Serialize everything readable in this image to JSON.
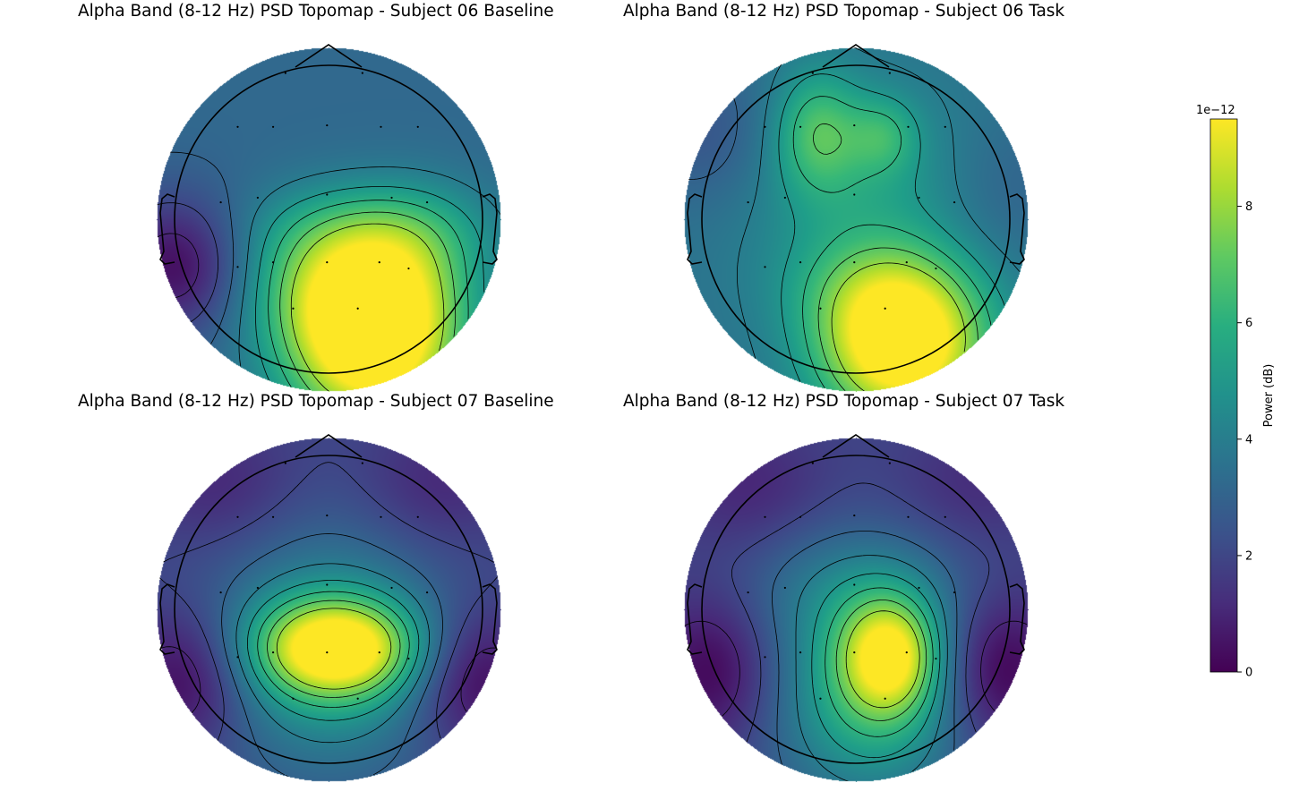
{
  "chart_data": [
    {
      "type": "heatmap",
      "title": "Alpha Band (8-12 Hz) PSD Topomap - Subject 06 Baseline",
      "sensors": [
        {
          "x": -0.28,
          "y": 0.95
        },
        {
          "x": 0.22,
          "y": 0.95
        },
        {
          "x": -0.59,
          "y": 0.6
        },
        {
          "x": -0.36,
          "y": 0.6
        },
        {
          "x": -0.01,
          "y": 0.61
        },
        {
          "x": 0.34,
          "y": 0.6
        },
        {
          "x": 0.58,
          "y": 0.6
        },
        {
          "x": -0.7,
          "y": 0.11
        },
        {
          "x": -0.46,
          "y": 0.14
        },
        {
          "x": -0.01,
          "y": 0.16
        },
        {
          "x": 0.41,
          "y": 0.14
        },
        {
          "x": 0.64,
          "y": 0.11
        },
        {
          "x": -0.59,
          "y": -0.31
        },
        {
          "x": -0.36,
          "y": -0.28
        },
        {
          "x": -0.01,
          "y": -0.28
        },
        {
          "x": 0.33,
          "y": -0.28
        },
        {
          "x": 0.52,
          "y": -0.32
        },
        {
          "x": -0.23,
          "y": -0.58
        },
        {
          "x": 0.19,
          "y": -0.58
        }
      ],
      "blobs": [
        {
          "x": 0.28,
          "y": -0.78,
          "sx": 0.4,
          "sy": 0.42,
          "a": 8.2
        },
        {
          "x": 0.05,
          "y": -0.4,
          "sx": 0.45,
          "sy": 0.3,
          "a": 2.6
        },
        {
          "x": 0.25,
          "y": -0.05,
          "sx": 0.55,
          "sy": 0.22,
          "a": 1.6
        },
        {
          "x": 0.6,
          "y": -0.2,
          "sx": 0.3,
          "sy": 0.3,
          "a": 1.0
        },
        {
          "x": -0.98,
          "y": -0.3,
          "sx": 0.32,
          "sy": 0.32,
          "a": -3.0
        }
      ],
      "base": 3.2
    },
    {
      "type": "heatmap",
      "title": "Alpha Band (8-12 Hz) PSD Topomap - Subject 06 Task",
      "sensors": [
        {
          "x": -0.28,
          "y": 0.95
        },
        {
          "x": 0.22,
          "y": 0.95
        },
        {
          "x": -0.59,
          "y": 0.6
        },
        {
          "x": -0.36,
          "y": 0.6
        },
        {
          "x": -0.01,
          "y": 0.61
        },
        {
          "x": 0.34,
          "y": 0.6
        },
        {
          "x": 0.58,
          "y": 0.6
        },
        {
          "x": -0.7,
          "y": 0.11
        },
        {
          "x": -0.46,
          "y": 0.14
        },
        {
          "x": -0.01,
          "y": 0.16
        },
        {
          "x": 0.41,
          "y": 0.14
        },
        {
          "x": 0.64,
          "y": 0.11
        },
        {
          "x": -0.59,
          "y": -0.31
        },
        {
          "x": -0.36,
          "y": -0.28
        },
        {
          "x": -0.01,
          "y": -0.28
        },
        {
          "x": 0.33,
          "y": -0.28
        },
        {
          "x": 0.52,
          "y": -0.32
        },
        {
          "x": -0.23,
          "y": -0.58
        },
        {
          "x": 0.19,
          "y": -0.58
        }
      ],
      "blobs": [
        {
          "x": 0.3,
          "y": -0.82,
          "sx": 0.38,
          "sy": 0.36,
          "a": 7.5
        },
        {
          "x": 0.1,
          "y": -0.45,
          "sx": 0.4,
          "sy": 0.25,
          "a": 1.5
        },
        {
          "x": -0.25,
          "y": 0.58,
          "sx": 0.2,
          "sy": 0.28,
          "a": 2.6
        },
        {
          "x": 0.18,
          "y": 0.55,
          "sx": 0.16,
          "sy": 0.18,
          "a": 1.7
        },
        {
          "x": 0.05,
          "y": 0.2,
          "sx": 0.55,
          "sy": 0.45,
          "a": 1.6
        },
        {
          "x": -0.95,
          "y": 0.55,
          "sx": 0.35,
          "sy": 0.35,
          "a": -1.2
        },
        {
          "x": 0.95,
          "y": 0.2,
          "sx": 0.35,
          "sy": 0.35,
          "a": -0.8
        }
      ],
      "base": 3.6
    },
    {
      "type": "heatmap",
      "title": "Alpha Band (8-12 Hz) PSD Topomap - Subject 07 Baseline",
      "sensors": [
        {
          "x": -0.28,
          "y": 0.95
        },
        {
          "x": 0.22,
          "y": 0.95
        },
        {
          "x": -0.59,
          "y": 0.6
        },
        {
          "x": -0.36,
          "y": 0.6
        },
        {
          "x": -0.01,
          "y": 0.61
        },
        {
          "x": 0.34,
          "y": 0.6
        },
        {
          "x": 0.58,
          "y": 0.6
        },
        {
          "x": -0.7,
          "y": 0.11
        },
        {
          "x": -0.46,
          "y": 0.14
        },
        {
          "x": -0.01,
          "y": 0.16
        },
        {
          "x": 0.41,
          "y": 0.14
        },
        {
          "x": 0.64,
          "y": 0.11
        },
        {
          "x": -0.59,
          "y": -0.31
        },
        {
          "x": -0.36,
          "y": -0.28
        },
        {
          "x": -0.01,
          "y": -0.28
        },
        {
          "x": 0.33,
          "y": -0.28
        },
        {
          "x": 0.52,
          "y": -0.32
        },
        {
          "x": -0.23,
          "y": -0.58
        },
        {
          "x": 0.19,
          "y": -0.58
        }
      ],
      "blobs": [
        {
          "x": 0.05,
          "y": -0.25,
          "sx": 0.36,
          "sy": 0.22,
          "a": 6.5
        },
        {
          "x": 0.0,
          "y": -0.3,
          "sx": 0.55,
          "sy": 0.55,
          "a": 3.2
        },
        {
          "x": -0.9,
          "y": -0.45,
          "sx": 0.3,
          "sy": 0.32,
          "a": -2.2
        },
        {
          "x": 0.92,
          "y": -0.45,
          "sx": 0.3,
          "sy": 0.32,
          "a": -2.2
        },
        {
          "x": -0.7,
          "y": 0.8,
          "sx": 0.35,
          "sy": 0.3,
          "a": -1.0
        },
        {
          "x": 0.7,
          "y": 0.8,
          "sx": 0.35,
          "sy": 0.3,
          "a": -1.0
        }
      ],
      "base": 2.0
    },
    {
      "type": "heatmap",
      "title": "Alpha Band (8-12 Hz) PSD Topomap - Subject 07 Task",
      "sensors": [
        {
          "x": -0.28,
          "y": 0.95
        },
        {
          "x": 0.22,
          "y": 0.95
        },
        {
          "x": -0.59,
          "y": 0.6
        },
        {
          "x": -0.36,
          "y": 0.6
        },
        {
          "x": -0.01,
          "y": 0.61
        },
        {
          "x": 0.34,
          "y": 0.6
        },
        {
          "x": 0.58,
          "y": 0.6
        },
        {
          "x": -0.7,
          "y": 0.11
        },
        {
          "x": -0.46,
          "y": 0.14
        },
        {
          "x": -0.01,
          "y": 0.16
        },
        {
          "x": 0.41,
          "y": 0.14
        },
        {
          "x": 0.64,
          "y": 0.11
        },
        {
          "x": -0.59,
          "y": -0.31
        },
        {
          "x": -0.36,
          "y": -0.28
        },
        {
          "x": -0.01,
          "y": -0.28
        },
        {
          "x": 0.33,
          "y": -0.28
        },
        {
          "x": 0.52,
          "y": -0.32
        },
        {
          "x": -0.23,
          "y": -0.58
        },
        {
          "x": 0.19,
          "y": -0.58
        }
      ],
      "blobs": [
        {
          "x": 0.22,
          "y": -0.3,
          "sx": 0.22,
          "sy": 0.26,
          "a": 5.2
        },
        {
          "x": 0.1,
          "y": -0.55,
          "sx": 0.45,
          "sy": 0.5,
          "a": 4.0
        },
        {
          "x": 0.0,
          "y": 0.15,
          "sx": 0.5,
          "sy": 0.3,
          "a": 1.4
        },
        {
          "x": -0.92,
          "y": -0.4,
          "sx": 0.3,
          "sy": 0.35,
          "a": -2.0
        },
        {
          "x": 0.9,
          "y": -0.4,
          "sx": 0.3,
          "sy": 0.35,
          "a": -2.4
        },
        {
          "x": -0.7,
          "y": 0.8,
          "sx": 0.35,
          "sy": 0.3,
          "a": -1.0
        },
        {
          "x": 0.75,
          "y": 0.8,
          "sx": 0.35,
          "sy": 0.3,
          "a": -0.8
        }
      ],
      "base": 2.0
    }
  ],
  "colorbar": {
    "label": "Power (dB)",
    "offset_text": "1e−12",
    "range": [
      0,
      9.5
    ],
    "ticks": [
      {
        "value": 0,
        "label": "0"
      },
      {
        "value": 2,
        "label": "2"
      },
      {
        "value": 4,
        "label": "4"
      },
      {
        "value": 6,
        "label": "6"
      },
      {
        "value": 8,
        "label": "8"
      }
    ],
    "colormap": "viridis"
  }
}
